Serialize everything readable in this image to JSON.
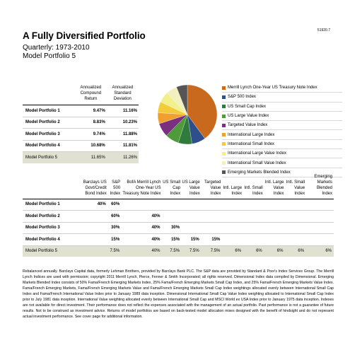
{
  "page": {
    "code": "51920.7",
    "title": "A Fully Diversified Portfolio",
    "subtitle": "Quarterly: 1973-2010",
    "portfolio": "Model Portfolio 5"
  },
  "summary": {
    "headers": [
      "",
      "Annualized Compound Return",
      "Annualized Standard Deviation"
    ],
    "rows": [
      {
        "name": "Model Portfolio 1",
        "return": "9.47%",
        "sd": "11.16%"
      },
      {
        "name": "Model Portfolio 2",
        "return": "8.83%",
        "sd": "10.23%"
      },
      {
        "name": "Model Portfolio 3",
        "return": "9.74%",
        "sd": "11.88%"
      },
      {
        "name": "Model Portfolio 4",
        "return": "10.68%",
        "sd": "11.81%"
      },
      {
        "name": "Model Portfolio 5",
        "return": "11.65%",
        "sd": "11.26%"
      }
    ]
  },
  "chart_data": {
    "type": "pie",
    "categories": [
      "Merrill Lynch One-Year US Treasury Note Index",
      "S&P 500 Index",
      "US Small Cap Index",
      "US Large Value Index",
      "Targeted Value Index",
      "International Large Index",
      "International Small Index",
      "International Large Value Index",
      "International Small Value Index",
      "Emerging Markets Blended Index"
    ],
    "values": [
      40,
      7.5,
      7.5,
      7.5,
      7.5,
      6,
      6,
      6,
      6,
      6
    ],
    "colors": [
      "#c8691e",
      "#2e4f8c",
      "#2f7a3c",
      "#4f9a3a",
      "#7a2f7f",
      "#f0a030",
      "#f2cc3a",
      "#f2f08a",
      "#f3f0c0",
      "#555555"
    ]
  },
  "allocation": {
    "headers": [
      "",
      "Barclays US Govt/Credit Bond Index",
      "S&P 500 Index",
      "BofA Merrill Lynch One-Year US Treasury Note Index",
      "US Small Cap Index",
      "US Large Value Index",
      "Targeted Value Index",
      "Intl. Large Index",
      "Intl. Small Index",
      "Intl. Large Value Index",
      "Intl. Small Value Index",
      "Emerging Markets Blended Index"
    ],
    "rows": [
      {
        "name": "Model Portfolio 1",
        "cells": [
          "40%",
          "60%",
          "",
          "",
          "",
          "",
          "",
          "",
          "",
          "",
          ""
        ]
      },
      {
        "name": "Model Portfolio 2",
        "cells": [
          "",
          "60%",
          "40%",
          "",
          "",
          "",
          "",
          "",
          "",
          "",
          ""
        ]
      },
      {
        "name": "Model Portfolio 3",
        "cells": [
          "",
          "30%",
          "40%",
          "30%",
          "",
          "",
          "",
          "",
          "",
          "",
          ""
        ]
      },
      {
        "name": "Model Portfolio 4",
        "cells": [
          "",
          "15%",
          "40%",
          "15%",
          "15%",
          "15%",
          "",
          "",
          "",
          "",
          ""
        ]
      },
      {
        "name": "Model Portfolio 5",
        "cells": [
          "",
          "7.5%",
          "40%",
          "7.5%",
          "7.5%",
          "7.5%",
          "6%",
          "6%",
          "6%",
          "6%",
          "6%"
        ]
      }
    ]
  },
  "footnote": "Rebalanced annually. Barclays Capital data, formerly Lehman Brothers, provided by Barclays Bank PLC. The S&P data are provided by Standard & Poor's Index Services Group. The Merrill Lynch Indices are used with permission; copyright 2011 Merrill Lynch, Pierce, Fenner & Smith Incorporated; all rights reserved. Dimensional Index data compiled by Dimensional. Emerging Markets Blended Index consists of 50% Fama/French Emerging Markets Index, 25% Fama/French Emerging Markets Small Cap Index, and 25% Fama/French Emerging Markets Value Index. Fama/French Emerging Markets, Fama/French Emerging Markets Value and Fama/French Emerging Markets Small Cap Index weightings allocated evenly between International Small Cap Index and Fama/French International Value Index prior to January 1989 data inception. Dimensional International Small Cap Value Index weighting allocated to International Small Cap Index prior to July 1981 data inception. International Value weighting allocated evenly between International Small Cap and MSCI World ex USA Index prior to January 1975 data inception. Indexes are not available for direct investment. Their performance does not reflect the expenses associated with the management of an actual portfolio. Past performance is not a guarantee of future results. Not to be construed as investment advice. Returns of model portfolios are based on back-tested model allocation mixes designed with the benefit of hindsight and do not represent actual investment performance. See cover page for additional information."
}
